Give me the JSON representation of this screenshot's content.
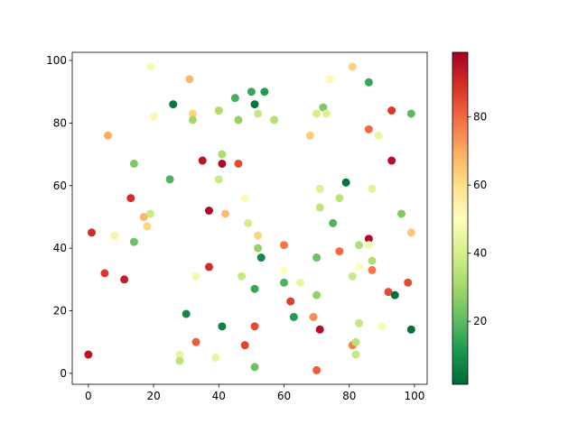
{
  "chart_data": {
    "type": "scatter",
    "x": [
      0,
      1,
      5,
      6,
      8,
      11,
      13,
      14,
      14,
      17,
      18,
      19,
      19,
      20,
      25,
      26,
      28,
      28,
      30,
      31,
      32,
      32,
      33,
      33,
      35,
      37,
      37,
      39,
      40,
      40,
      41,
      41,
      41,
      42,
      45,
      46,
      46,
      47,
      48,
      48,
      49,
      50,
      51,
      51,
      51,
      51,
      52,
      52,
      52,
      53,
      54,
      57,
      60,
      60,
      60,
      62,
      63,
      65,
      68,
      69,
      70,
      70,
      70,
      70,
      71,
      71,
      71,
      72,
      73,
      74,
      75,
      77,
      77,
      79,
      81,
      81,
      81,
      82,
      82,
      83,
      83,
      83,
      86,
      86,
      86,
      86,
      87,
      87,
      87,
      89,
      90,
      92,
      93,
      93,
      94,
      96,
      98,
      99,
      99,
      99
    ],
    "y": [
      6,
      45,
      32,
      76,
      44,
      30,
      56,
      67,
      42,
      50,
      47,
      98,
      51,
      82,
      62,
      86,
      6,
      4,
      19,
      94,
      83,
      81,
      10,
      31,
      68,
      52,
      34,
      5,
      84,
      62,
      70,
      67,
      15,
      51,
      88,
      81,
      67,
      31,
      56,
      9,
      48,
      90,
      86,
      27,
      15,
      2,
      83,
      44,
      40,
      37,
      90,
      81,
      41,
      33,
      29,
      23,
      18,
      29,
      76,
      18,
      83,
      37,
      25,
      1,
      14,
      59,
      53,
      85,
      83,
      94,
      48,
      56,
      39,
      61,
      98,
      9,
      31,
      10,
      6,
      41,
      34,
      16,
      93,
      78,
      43,
      41,
      59,
      36,
      33,
      76,
      15,
      26,
      84,
      68,
      25,
      51,
      29,
      83,
      45,
      14
    ],
    "c": [
      95,
      90,
      88,
      70,
      55,
      93,
      90,
      25,
      22,
      68,
      62,
      48,
      38,
      53,
      18,
      5,
      45,
      35,
      8,
      68,
      62,
      30,
      82,
      47,
      95,
      97,
      90,
      44,
      32,
      38,
      32,
      97,
      7,
      67,
      17,
      28,
      85,
      37,
      52,
      86,
      40,
      15,
      4,
      15,
      85,
      22,
      37,
      62,
      28,
      8,
      12,
      34,
      78,
      50,
      18,
      87,
      12,
      45,
      64,
      75,
      40,
      22,
      28,
      82,
      96,
      42,
      36,
      25,
      42,
      52,
      18,
      35,
      80,
      4,
      63,
      77,
      38,
      35,
      37,
      33,
      50,
      37,
      15,
      80,
      97,
      47,
      43,
      33,
      78,
      45,
      48,
      85,
      88,
      96,
      3,
      25,
      85,
      20,
      65,
      3
    ],
    "xlim": [
      -4.95,
      103.9
    ],
    "ylim": [
      -3.5,
      102.6
    ],
    "xticks": [
      0,
      20,
      40,
      60,
      80,
      100
    ],
    "yticks": [
      0,
      20,
      40,
      60,
      80,
      100
    ],
    "clim": [
      1.5,
      99
    ],
    "cticks": [
      20,
      40,
      60,
      80
    ],
    "colormap_colors": [
      "#006837",
      "#1a9850",
      "#66bd63",
      "#a6d96a",
      "#d9ef8b",
      "#ffffbf",
      "#fee08b",
      "#fdae61",
      "#f46d43",
      "#d73027",
      "#a50026"
    ]
  }
}
